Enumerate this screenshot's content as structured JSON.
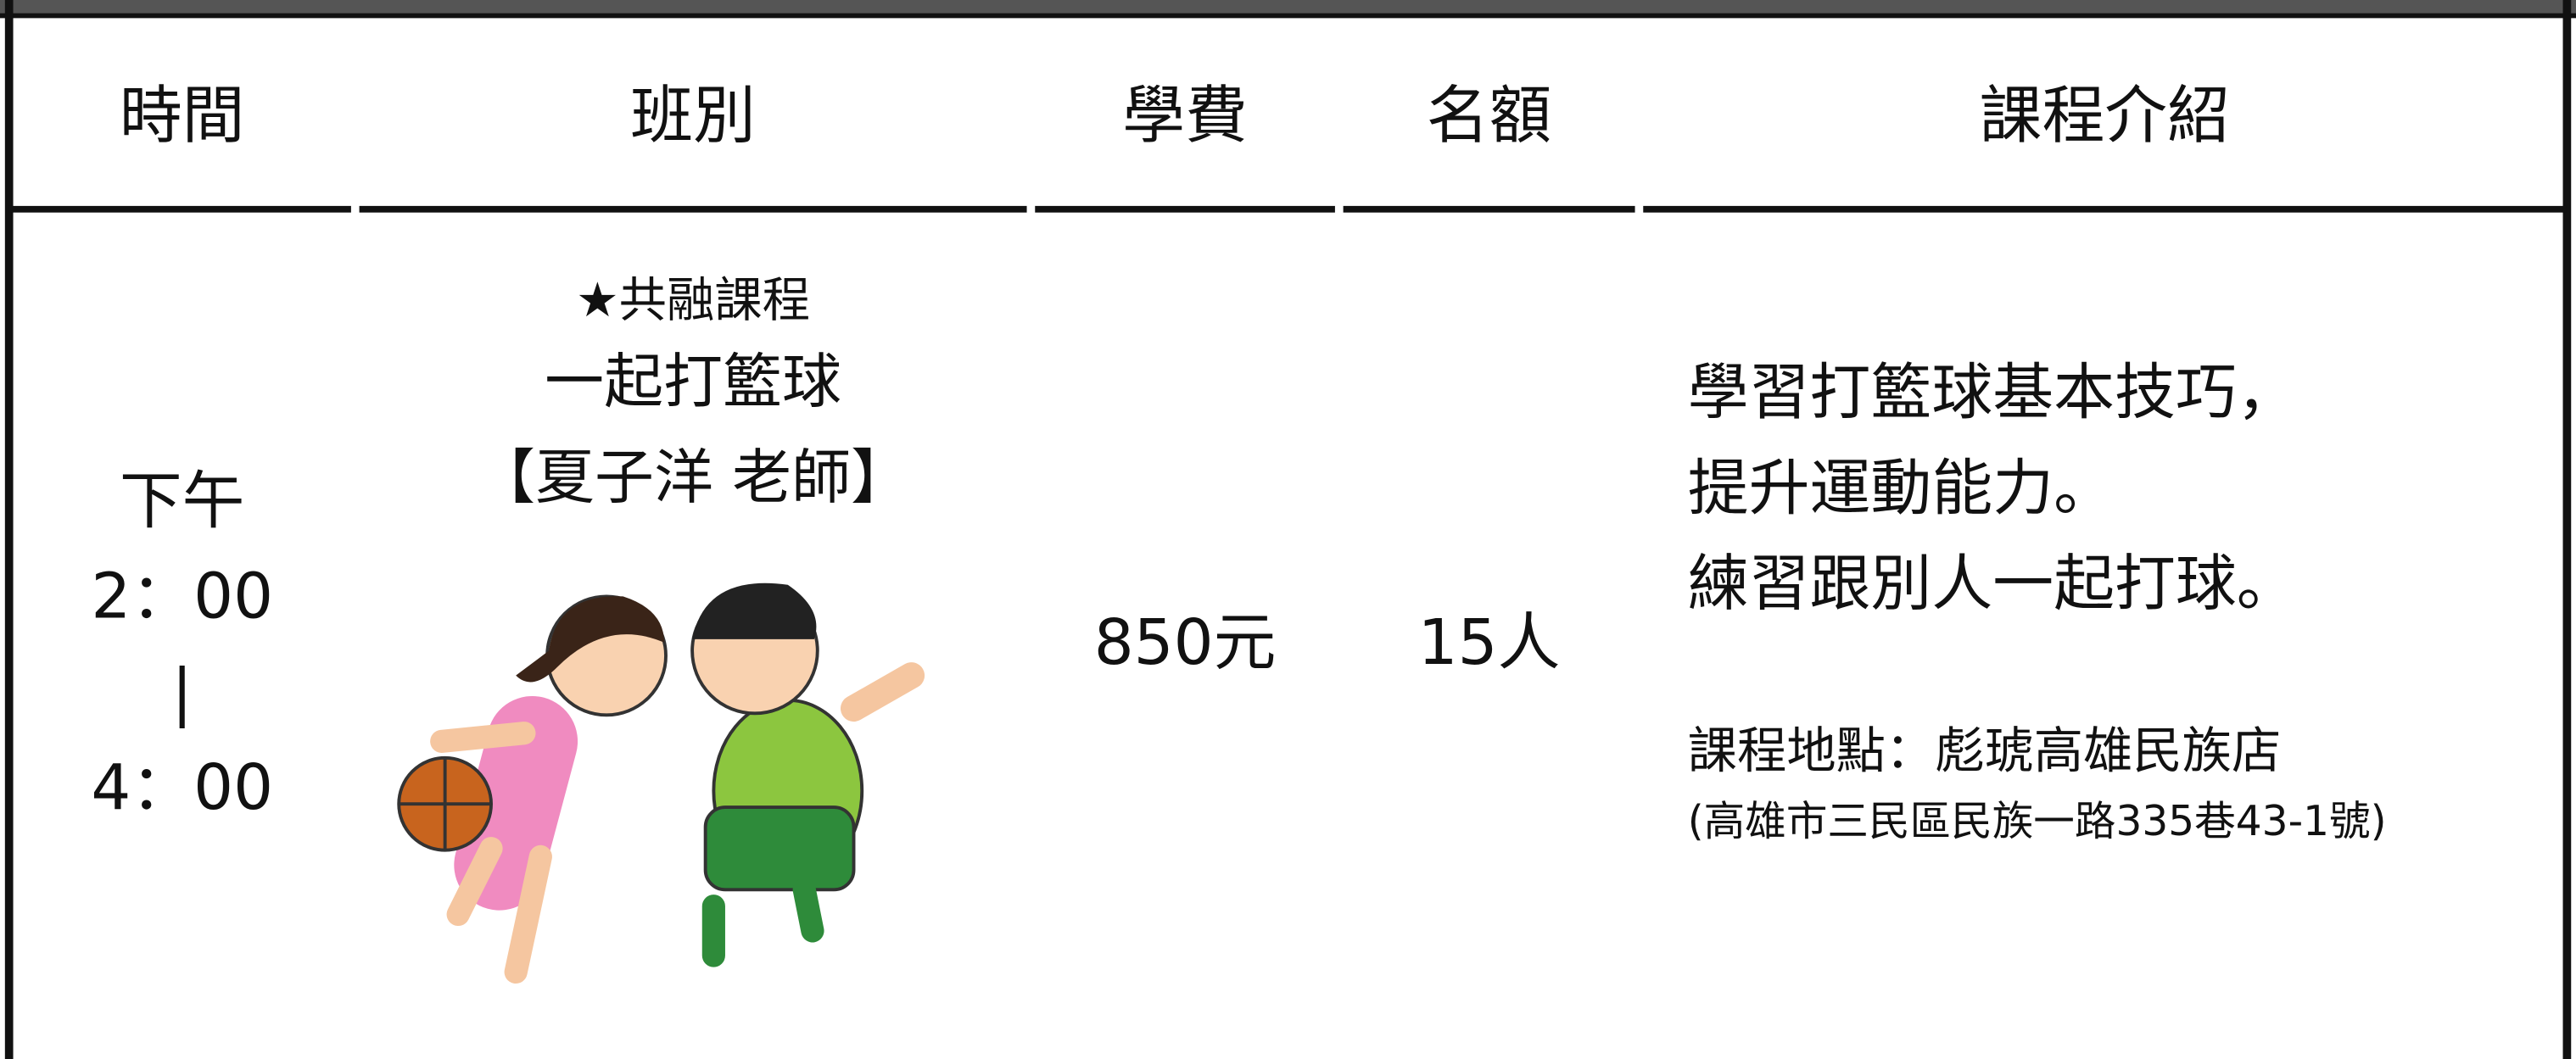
{
  "table": {
    "header": [
      "時間",
      "班別",
      "學費",
      "名額",
      "課程介紹"
    ],
    "rows": [
      {
        "time": [
          "下午",
          "2：00",
          "|",
          "4：00"
        ],
        "class": [
          "★共融課程",
          "一起打籃球",
          "【夏子洋 老師】"
        ],
        "fee": "850元",
        "quota": "15人",
        "intro": [
          "學習打籃球基本技巧，",
          "提升運動能力。",
          "練習跟別人一起打球。"
        ],
        "location": [
          "課程地點：彪琥高雄民族店",
          "(高雄市三民區民族一路335巷43-1號)"
        ]
      }
    ]
  }
}
